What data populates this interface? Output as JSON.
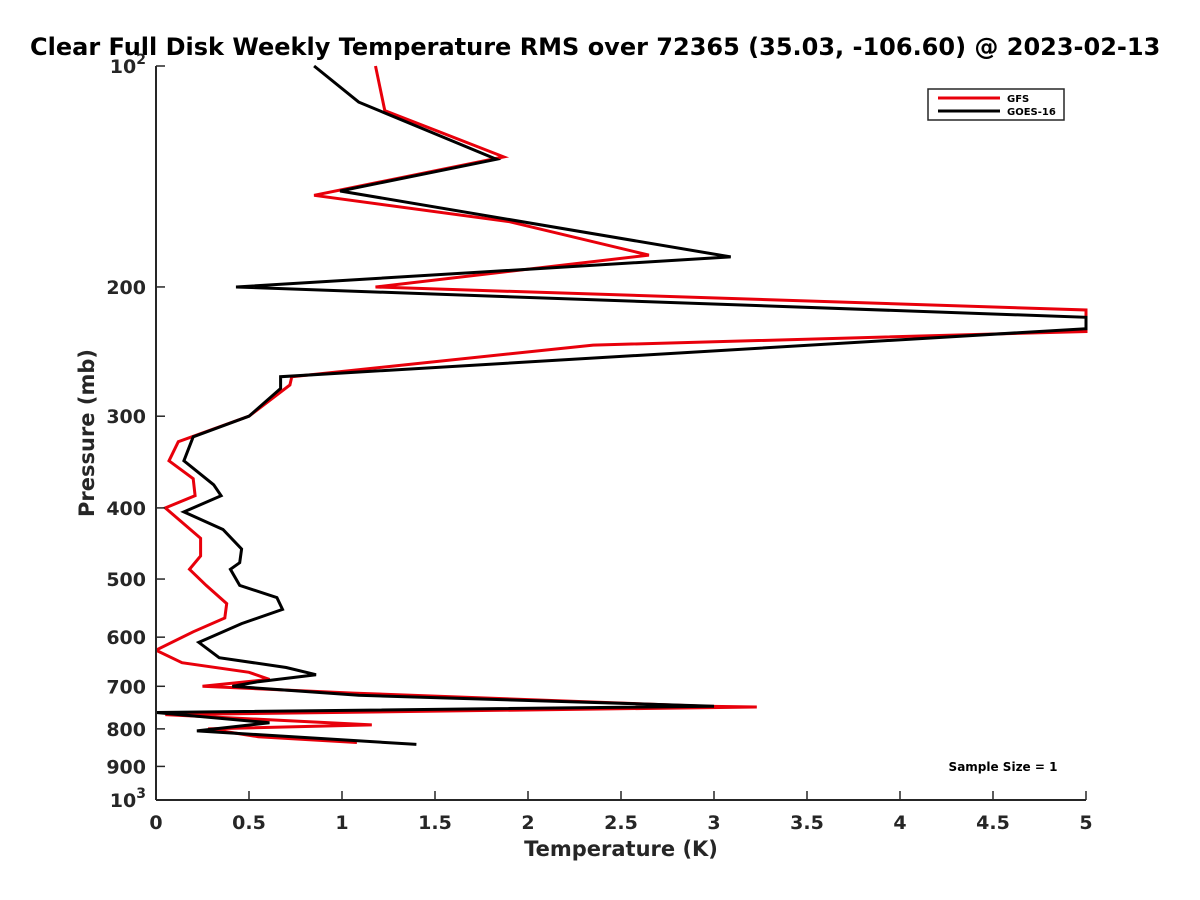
{
  "chart_data": {
    "type": "line",
    "title": "Clear Full Disk Weekly Temperature RMS over 72365 (35.03, -106.60) @ 2023-02-13",
    "xlabel": "Temperature (K)",
    "ylabel": "Pressure (mb)",
    "xlim": [
      0,
      5
    ],
    "ylim": [
      100,
      1000
    ],
    "y_scale": "log",
    "y_reversed": true,
    "grid": false,
    "legend_position": "top-right",
    "x_ticks": [
      0,
      0.5,
      1,
      1.5,
      2,
      2.5,
      3,
      3.5,
      4,
      4.5,
      5
    ],
    "x_tick_labels": [
      "0",
      "0.5",
      "1",
      "1.5",
      "2",
      "2.5",
      "3",
      "3.5",
      "4",
      "4.5",
      "5"
    ],
    "y_ticks": [
      {
        "value": 100,
        "base": "10",
        "exp": "2"
      },
      {
        "value": 200,
        "label": "200"
      },
      {
        "value": 300,
        "label": "300"
      },
      {
        "value": 400,
        "label": "400"
      },
      {
        "value": 500,
        "label": "500"
      },
      {
        "value": 600,
        "label": "600"
      },
      {
        "value": 700,
        "label": "700"
      },
      {
        "value": 800,
        "label": "800"
      },
      {
        "value": 900,
        "label": "900"
      },
      {
        "value": 1000,
        "base": "10",
        "exp": "3"
      }
    ],
    "annotation": "Sample Size = 1",
    "series": [
      {
        "name": "GFS",
        "color": "#e8000b",
        "points": [
          [
            1.18,
            100
          ],
          [
            1.23,
            115
          ],
          [
            1.87,
            133
          ],
          [
            0.85,
            150
          ],
          [
            1.9,
            163
          ],
          [
            2.65,
            181
          ],
          [
            1.18,
            200
          ],
          [
            5.0,
            215
          ],
          [
            5.0,
            230
          ],
          [
            2.35,
            240
          ],
          [
            0.73,
            265
          ],
          [
            0.72,
            272
          ],
          [
            0.5,
            300
          ],
          [
            0.12,
            325
          ],
          [
            0.07,
            345
          ],
          [
            0.2,
            365
          ],
          [
            0.21,
            385
          ],
          [
            0.05,
            400
          ],
          [
            0.24,
            440
          ],
          [
            0.24,
            465
          ],
          [
            0.18,
            485
          ],
          [
            0.27,
            510
          ],
          [
            0.38,
            540
          ],
          [
            0.37,
            565
          ],
          [
            0.2,
            590
          ],
          [
            0.0,
            625
          ],
          [
            0.14,
            650
          ],
          [
            0.5,
            670
          ],
          [
            0.61,
            685
          ],
          [
            0.25,
            700
          ],
          [
            1.06,
            715
          ],
          [
            2.95,
            745
          ],
          [
            3.23,
            747
          ],
          [
            0.05,
            765
          ],
          [
            1.16,
            790
          ],
          [
            0.28,
            800
          ],
          [
            0.55,
            820
          ],
          [
            1.08,
            835
          ]
        ]
      },
      {
        "name": "GOES-16",
        "color": "#000000",
        "points": [
          [
            0.85,
            100
          ],
          [
            1.09,
            112
          ],
          [
            1.83,
            134
          ],
          [
            0.99,
            148
          ],
          [
            3.09,
            182
          ],
          [
            0.43,
            200
          ],
          [
            5.0,
            220
          ],
          [
            5.0,
            228
          ],
          [
            0.67,
            265
          ],
          [
            0.67,
            275
          ],
          [
            0.5,
            300
          ],
          [
            0.2,
            320
          ],
          [
            0.15,
            345
          ],
          [
            0.31,
            372
          ],
          [
            0.35,
            385
          ],
          [
            0.15,
            405
          ],
          [
            0.36,
            428
          ],
          [
            0.46,
            455
          ],
          [
            0.45,
            475
          ],
          [
            0.4,
            485
          ],
          [
            0.45,
            510
          ],
          [
            0.65,
            530
          ],
          [
            0.68,
            550
          ],
          [
            0.46,
            575
          ],
          [
            0.23,
            610
          ],
          [
            0.34,
            640
          ],
          [
            0.7,
            660
          ],
          [
            0.86,
            675
          ],
          [
            0.55,
            690
          ],
          [
            0.41,
            700
          ],
          [
            1.09,
            720
          ],
          [
            3.0,
            745
          ],
          [
            0.0,
            760
          ],
          [
            0.61,
            785
          ],
          [
            0.22,
            805
          ],
          [
            1.4,
            840
          ]
        ]
      }
    ]
  }
}
